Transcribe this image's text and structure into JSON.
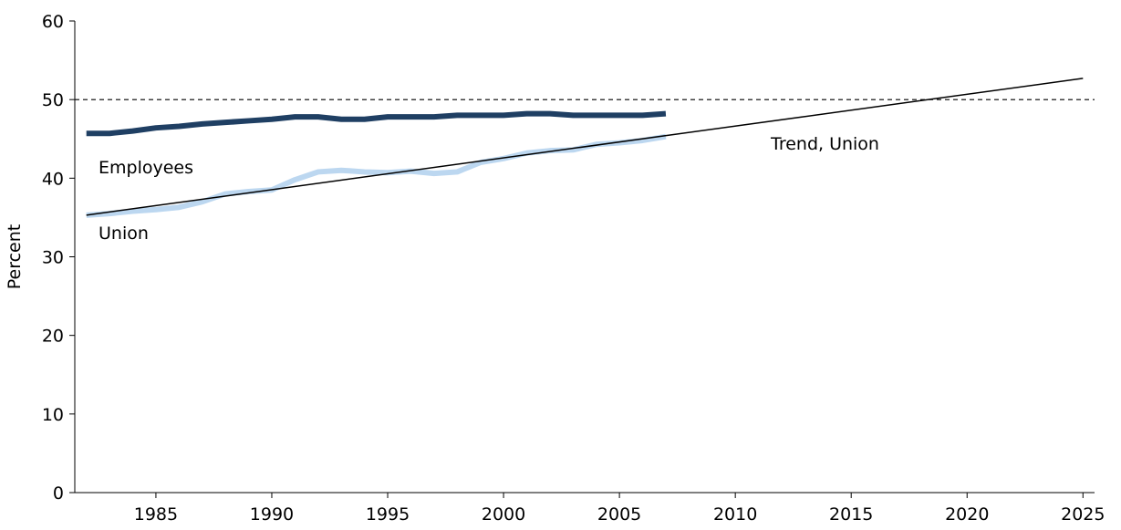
{
  "chart_data": {
    "type": "line",
    "y_label": "Percent",
    "x": [
      1982,
      1983,
      1984,
      1985,
      1986,
      1987,
      1988,
      1989,
      1990,
      1991,
      1992,
      1993,
      1994,
      1995,
      1996,
      1997,
      1998,
      1999,
      2000,
      2001,
      2002,
      2003,
      2004,
      2005,
      2006,
      2007
    ],
    "series": [
      {
        "name": "Employees",
        "color": "#1f3f63",
        "width": 6,
        "values": [
          45.7,
          45.7,
          46.0,
          46.4,
          46.6,
          46.9,
          47.1,
          47.3,
          47.5,
          47.8,
          47.8,
          47.5,
          47.5,
          47.8,
          47.8,
          47.8,
          48.0,
          48.0,
          48.0,
          48.2,
          48.2,
          48.0,
          48.0,
          48.0,
          48.0,
          48.2
        ]
      },
      {
        "name": "Union",
        "color": "#bcd7f0",
        "width": 6,
        "values": [
          35.3,
          35.5,
          35.8,
          36.0,
          36.3,
          37.0,
          38.0,
          38.3,
          38.5,
          39.8,
          40.8,
          41.0,
          40.8,
          40.7,
          40.9,
          40.6,
          40.8,
          42.0,
          42.5,
          43.2,
          43.5,
          43.6,
          44.3,
          44.5,
          44.8,
          45.3
        ]
      },
      {
        "name": "Trend, Union",
        "color": "#000000",
        "width": 1.5,
        "x": [
          1982,
          2025
        ],
        "values": [
          35.3,
          52.7
        ]
      }
    ],
    "reference_line": 50,
    "xlim": [
      1981.5,
      2025.5
    ],
    "xticks": [
      1985,
      1990,
      1995,
      2000,
      2005,
      2010,
      2015,
      2020,
      2025
    ],
    "ylim": [
      0,
      60
    ],
    "yticks": [
      0,
      10,
      20,
      30,
      40,
      50,
      60
    ]
  }
}
